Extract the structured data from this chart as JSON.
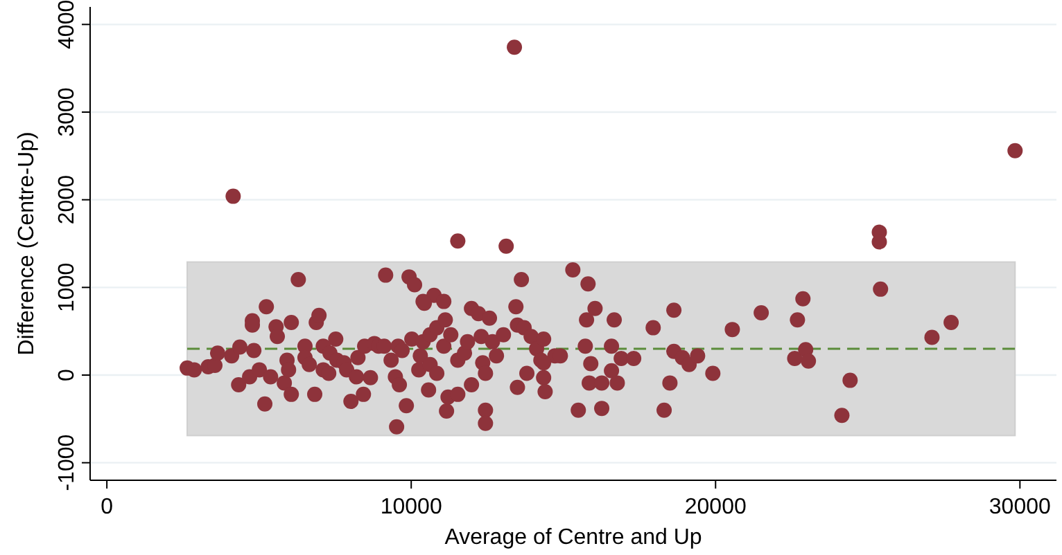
{
  "chart_data": {
    "type": "scatter",
    "xlabel": "Average of Centre and Up",
    "ylabel": "Difference (Centre-Up)",
    "xlim": [
      -550,
      31200
    ],
    "ylim": [
      -1200,
      4200
    ],
    "xticks": [
      0,
      10000,
      20000,
      30000
    ],
    "yticks": [
      -1000,
      0,
      1000,
      2000,
      3000,
      4000
    ],
    "grid": "y",
    "marker": "circle",
    "bands": [
      {
        "axis": "y",
        "from": -690,
        "to": 1290,
        "color": "#d9d9d9"
      }
    ],
    "ref_lines": [
      {
        "axis": "y",
        "value": 300,
        "color": "#5b8c3a",
        "line_style": "dashed"
      }
    ],
    "series": [
      {
        "color": "#8e333b",
        "x": [
          2640,
          2870,
          3330,
          3550,
          3640,
          4100,
          4370,
          4330,
          4780,
          4780,
          4830,
          4690,
          5010,
          5240,
          5190,
          5380,
          5560,
          5600,
          5830,
          6060,
          6060,
          6290,
          5920,
          5970,
          6510,
          6510,
          6650,
          6880,
          6970,
          6830,
          7110,
          7110,
          7290,
          7330,
          7520,
          7560,
          7790,
          7880,
          8020,
          8200,
          8250,
          8430,
          8470,
          8660,
          8790,
          8930,
          9110,
          9340,
          9480,
          9520,
          9570,
          9610,
          9700,
          9840,
          9930,
          10020,
          10110,
          10250,
          10300,
          10390,
          10390,
          10620,
          10620,
          10570,
          10750,
          10840,
          10840,
          11070,
          11120,
          11070,
          11160,
          11210,
          11300,
          11530,
          11530,
          11750,
          11850,
          11980,
          11980,
          12210,
          12300,
          12350,
          12440,
          12440,
          12440,
          12570,
          12670,
          12800,
          13030,
          13440,
          13490,
          13620,
          13490,
          13800,
          13710,
          13940,
          14120,
          14260,
          14350,
          14400,
          14720,
          4150,
          13390,
          11530,
          13120,
          9160,
          10430,
          15310,
          15810,
          16040,
          15760,
          16670,
          17950,
          18630,
          20550,
          21500,
          22690,
          22870,
          25380,
          25380,
          25420,
          27110,
          27740,
          14350,
          14350,
          14900,
          15720,
          15900,
          15850,
          15490,
          16260,
          16260,
          16580,
          16580,
          16770,
          16900,
          17310,
          18310,
          18500,
          18630,
          18910,
          19130,
          19410,
          19910,
          22600,
          22960,
          23050,
          24420,
          24150,
          29840
        ],
        "values": [
          80,
          60,
          95,
          110,
          250,
          220,
          320,
          -110,
          620,
          570,
          280,
          -20,
          60,
          780,
          -330,
          -20,
          550,
          440,
          -90,
          600,
          -220,
          1090,
          170,
          60,
          330,
          200,
          120,
          600,
          680,
          -220,
          330,
          60,
          20,
          250,
          410,
          170,
          140,
          60,
          -300,
          -20,
          200,
          -220,
          330,
          -30,
          360,
          330,
          330,
          170,
          -20,
          -590,
          330,
          -110,
          280,
          -350,
          1120,
          410,
          1030,
          60,
          220,
          380,
          840,
          460,
          120,
          -170,
          910,
          540,
          20,
          840,
          630,
          330,
          -410,
          -250,
          460,
          -220,
          170,
          250,
          380,
          -110,
          760,
          700,
          440,
          140,
          20,
          -400,
          -550,
          650,
          380,
          220,
          460,
          780,
          570,
          1090,
          -140,
          20,
          540,
          440,
          300,
          170,
          -30,
          -190,
          220,
          2040,
          3740,
          1530,
          1470,
          1140,
          820,
          1200,
          1040,
          760,
          630,
          630,
          540,
          740,
          520,
          710,
          630,
          870,
          1630,
          1520,
          980,
          430,
          600,
          410,
          140,
          220,
          330,
          130,
          -90,
          -400,
          -90,
          -380,
          330,
          50,
          -90,
          190,
          190,
          -400,
          -90,
          270,
          200,
          120,
          220,
          20,
          190,
          290,
          160,
          -60,
          -460,
          2560
        ]
      }
    ]
  }
}
